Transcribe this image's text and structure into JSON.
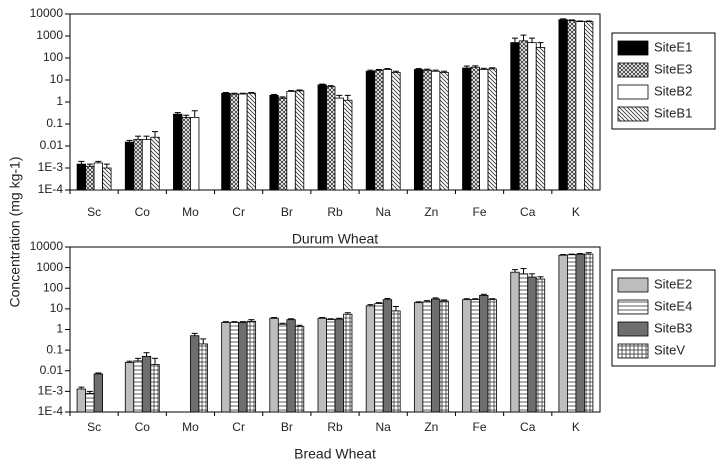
{
  "chart_data": [
    {
      "type": "bar",
      "ylabel": "Concentration (mg kg-1)",
      "xlabel": "Durum Wheat",
      "log_y": true,
      "legend": "right",
      "categories": [
        "Sc",
        "Co",
        "Mo",
        "Cr",
        "Br",
        "Rb",
        "Na",
        "Zn",
        "Fe",
        "Ca",
        "K"
      ],
      "ylim": [
        0.0001,
        10000
      ],
      "yticks": [
        10000,
        1000,
        100,
        10,
        1,
        0.1,
        0.01,
        {
          "value": 0.001,
          "label": "1E-3"
        },
        {
          "value": 0.0001,
          "label": "1E-4"
        }
      ],
      "series": [
        {
          "name": "SiteE1",
          "color": "#000000",
          "pattern": "solid",
          "values": [
            0.0015,
            0.015,
            0.28,
            2.5,
            2.0,
            6,
            25,
            30,
            35,
            500,
            5500
          ],
          "errors": [
            0.0005,
            0.003,
            0.05,
            0.2,
            0.2,
            0.5,
            3,
            3,
            8,
            300,
            500
          ]
        },
        {
          "name": "SiteE3",
          "color": "#ffffff",
          "pattern": "crosshatch",
          "values": [
            0.0012,
            0.02,
            0.2,
            2.3,
            1.5,
            5,
            27,
            28,
            38,
            600,
            5000
          ],
          "errors": [
            0.0003,
            0.008,
            0.05,
            0.2,
            0.2,
            0.5,
            3,
            3,
            6,
            500,
            400
          ]
        },
        {
          "name": "SiteB2",
          "color": "#ffffff",
          "pattern": "none",
          "values": [
            0.0017,
            0.02,
            0.2,
            2.3,
            3.0,
            1.5,
            30,
            25,
            30,
            500,
            4500
          ],
          "errors": [
            0.0003,
            0.008,
            0.2,
            0.2,
            0.3,
            0.5,
            3,
            3,
            4,
            300,
            300
          ]
        },
        {
          "name": "SiteB1",
          "color": "#ffffff",
          "pattern": "diagonal",
          "values": [
            0.001,
            0.025,
            null,
            2.5,
            3.2,
            1.2,
            22,
            22,
            32,
            300,
            4500
          ],
          "errors": [
            0.0005,
            0.02,
            null,
            0.2,
            0.3,
            0.8,
            3,
            3,
            4,
            200,
            300
          ]
        }
      ]
    },
    {
      "type": "bar",
      "xlabel": "Bread Wheat",
      "log_y": true,
      "legend": "right",
      "categories": [
        "Sc",
        "Co",
        "Mo",
        "Cr",
        "Br",
        "Rb",
        "Na",
        "Zn",
        "Fe",
        "Ca",
        "K"
      ],
      "ylim": [
        0.0001,
        10000
      ],
      "yticks": [
        10000,
        1000,
        100,
        10,
        1,
        0.1,
        0.01,
        {
          "value": 0.001,
          "label": "1E-3"
        },
        {
          "value": 0.0001,
          "label": "1E-4"
        }
      ],
      "series": [
        {
          "name": "SiteE2",
          "color": "#bdbdbd",
          "pattern": "solid",
          "values": [
            0.0013,
            0.025,
            null,
            2.2,
            3.5,
            3.5,
            14,
            20,
            28,
            600,
            4000
          ],
          "errors": [
            0.0003,
            0.004,
            null,
            0.2,
            0.3,
            0.3,
            2,
            2,
            3,
            200,
            300
          ]
        },
        {
          "name": "SiteE4",
          "color": "#ffffff",
          "pattern": "horizontal",
          "values": [
            0.0008,
            0.03,
            null,
            2.2,
            1.8,
            3.0,
            18,
            22,
            28,
            500,
            4200
          ],
          "errors": [
            0.0002,
            0.01,
            null,
            0.2,
            0.2,
            0.3,
            2,
            3,
            3,
            400,
            300
          ]
        },
        {
          "name": "SiteB3",
          "color": "#6e6e6e",
          "pattern": "solid",
          "values": [
            0.007,
            0.05,
            0.5,
            2.2,
            3.0,
            3.2,
            28,
            30,
            45,
            350,
            4500
          ],
          "errors": [
            0.0008,
            0.025,
            0.15,
            0.2,
            0.3,
            0.3,
            4,
            4,
            6,
            150,
            300
          ]
        },
        {
          "name": "SiteV",
          "color": "#ffffff",
          "pattern": "grid",
          "values": [
            null,
            0.02,
            0.2,
            2.5,
            1.4,
            5.5,
            8,
            24,
            28,
            280,
            4500
          ],
          "errors": [
            null,
            0.02,
            0.15,
            0.5,
            0.2,
            1,
            5,
            3,
            3,
            80,
            800
          ]
        }
      ]
    }
  ]
}
